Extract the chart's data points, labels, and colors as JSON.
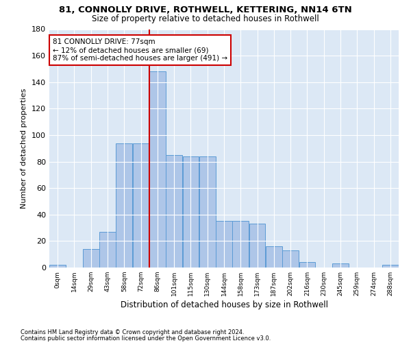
{
  "title_line1": "81, CONNOLLY DRIVE, ROTHWELL, KETTERING, NN14 6TN",
  "title_line2": "Size of property relative to detached houses in Rothwell",
  "xlabel": "Distribution of detached houses by size in Rothwell",
  "ylabel": "Number of detached properties",
  "footnote1": "Contains HM Land Registry data © Crown copyright and database right 2024.",
  "footnote2": "Contains public sector information licensed under the Open Government Licence v3.0.",
  "annotation_line1": "81 CONNOLLY DRIVE: 77sqm",
  "annotation_line2": "← 12% of detached houses are smaller (69)",
  "annotation_line3": "87% of semi-detached houses are larger (491) →",
  "property_size": 77,
  "bar_labels": [
    "0sqm",
    "14sqm",
    "29sqm",
    "43sqm",
    "58sqm",
    "72sqm",
    "86sqm",
    "101sqm",
    "115sqm",
    "130sqm",
    "144sqm",
    "158sqm",
    "173sqm",
    "187sqm",
    "202sqm",
    "216sqm",
    "230sqm",
    "245sqm",
    "259sqm",
    "274sqm",
    "288sqm"
  ],
  "bar_values": [
    2,
    0,
    14,
    27,
    94,
    94,
    148,
    85,
    84,
    84,
    35,
    35,
    33,
    16,
    13,
    4,
    0,
    3,
    0,
    0,
    2
  ],
  "bar_color": "#aec6e8",
  "bar_edge_color": "#5b9bd5",
  "vline_color": "#cc0000",
  "vline_x": 5.5,
  "annotation_box_color": "#cc0000",
  "annotation_fill": "#ffffff",
  "bg_color": "#dce8f5",
  "ylim": [
    0,
    180
  ],
  "yticks": [
    0,
    20,
    40,
    60,
    80,
    100,
    120,
    140,
    160,
    180
  ],
  "figsize": [
    6.0,
    5.0
  ],
  "dpi": 100
}
